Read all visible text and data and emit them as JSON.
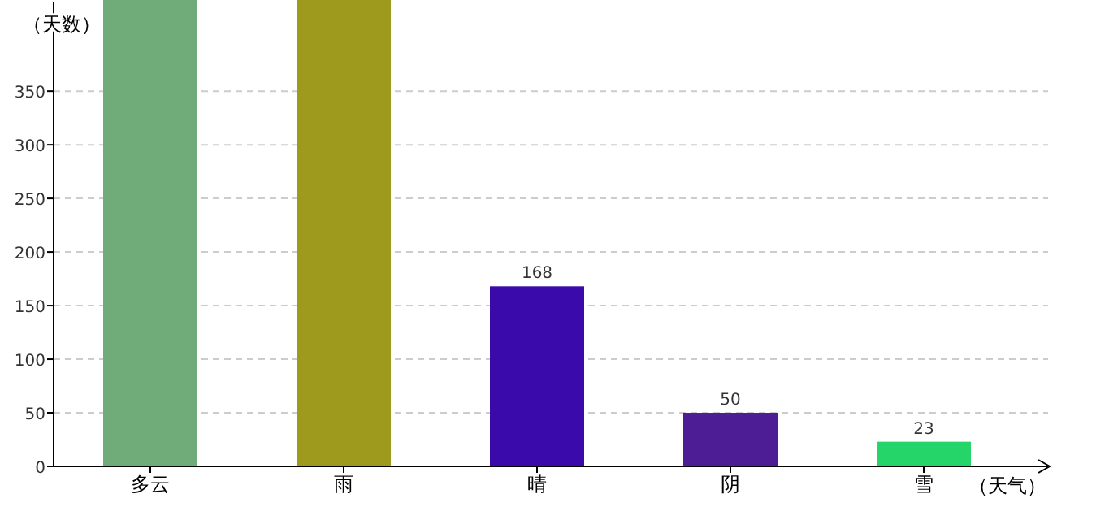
{
  "chart_data": {
    "type": "bar",
    "ylabel": "（天数）",
    "xlabel": "（天气）",
    "categories": [
      "多云",
      "雨",
      "晴",
      "阴",
      "雪"
    ],
    "values": [
      435,
      435,
      168,
      50,
      23
    ],
    "colors": [
      "#6fac7a",
      "#9e9a1e",
      "#3a0aaa",
      "#4c1d95",
      "#26d56a"
    ],
    "value_labels": [
      null,
      null,
      "168",
      "50",
      "23"
    ],
    "ylim": [
      0,
      435
    ],
    "yticks": [
      0,
      50,
      100,
      150,
      200,
      250,
      300,
      350
    ],
    "grid": "y"
  }
}
